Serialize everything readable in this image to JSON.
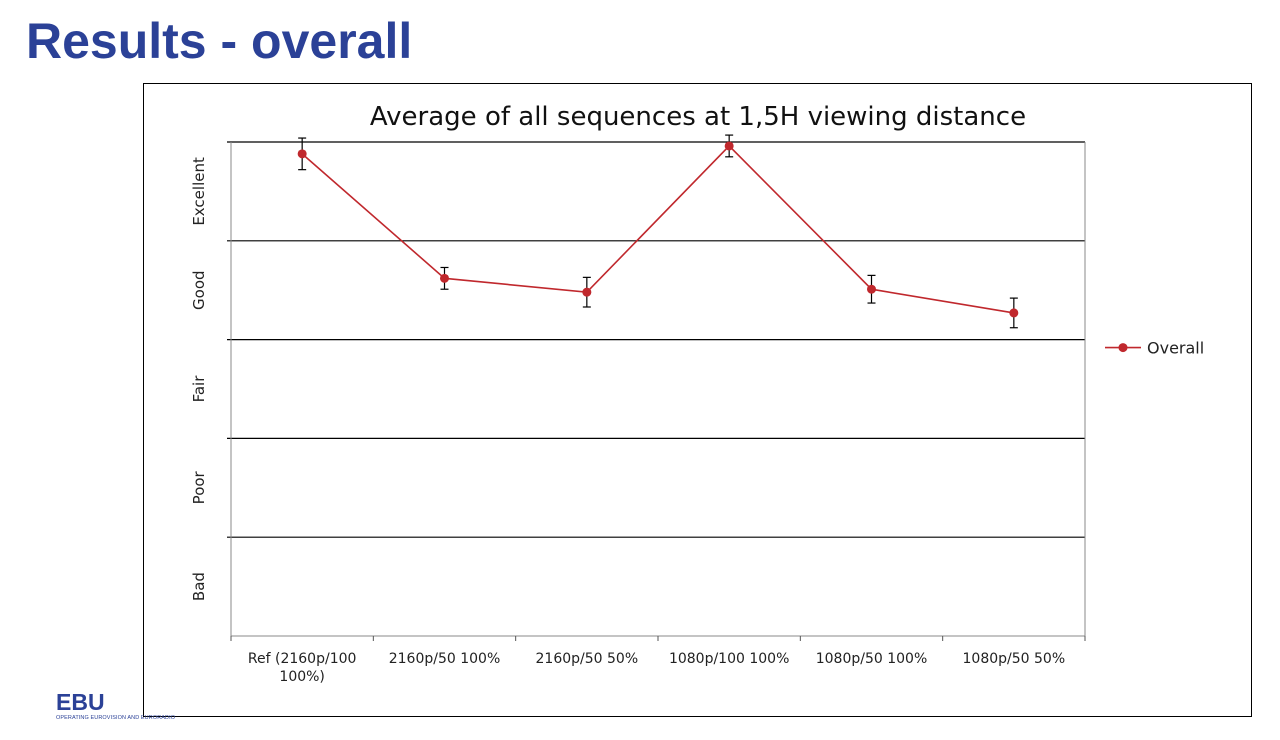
{
  "slide": {
    "title": "Results - overall",
    "logo_text": "EBU",
    "logo_subtext": "OPERATING EUROVISION AND EURORADIO"
  },
  "chart_data": {
    "type": "line",
    "title": "Average of all sequences at 1,5H viewing distance",
    "categories": [
      [
        "Ref (2160p/100",
        "100%)"
      ],
      [
        "2160p/50 100%"
      ],
      [
        "2160p/50 50%"
      ],
      [
        "1080p/100 100%"
      ],
      [
        "1080p/50 100%"
      ],
      [
        "1080p/50 50%"
      ]
    ],
    "y_band_labels": [
      "Bad",
      "Poor",
      "Fair",
      "Good",
      "Excellent"
    ],
    "ylim": [
      0,
      5
    ],
    "grid": true,
    "legend_position": "right",
    "series": [
      {
        "name": "Overall",
        "color": "#c0282d",
        "values": [
          4.88,
          3.62,
          3.48,
          4.96,
          3.51,
          3.27
        ],
        "error": [
          0.16,
          0.11,
          0.15,
          0.11,
          0.14,
          0.15
        ]
      }
    ]
  }
}
